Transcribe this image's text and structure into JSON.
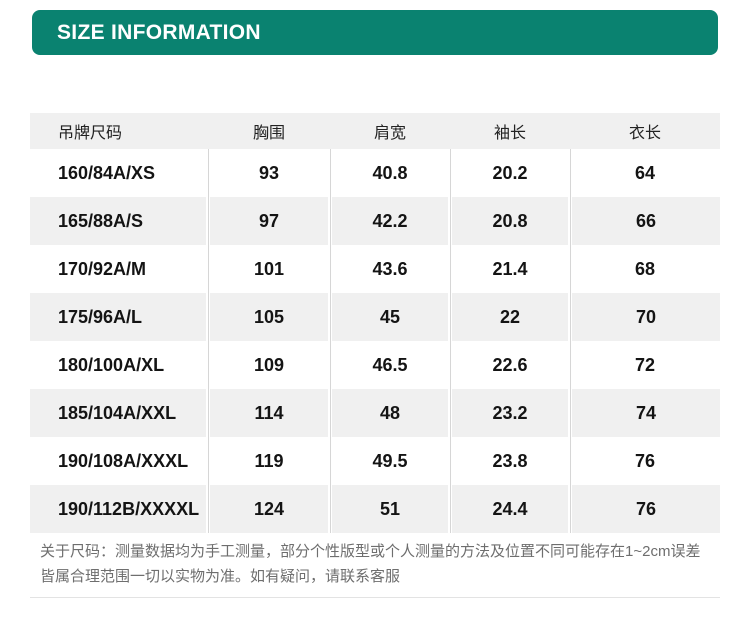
{
  "banner": {
    "title": "SIZE INFORMATION",
    "bg_color": "#0a8270",
    "text_color": "#ffffff"
  },
  "table": {
    "header": [
      "吊牌尺码",
      "胸围",
      "肩宽",
      "袖长",
      "衣长"
    ],
    "rows": [
      [
        "160/84A/XS",
        "93",
        "40.8",
        "20.2",
        "64"
      ],
      [
        "165/88A/S",
        "97",
        "42.2",
        "20.8",
        "66"
      ],
      [
        "170/92A/M",
        "101",
        "43.6",
        "21.4",
        "68"
      ],
      [
        "175/96A/L",
        "105",
        "45",
        "22",
        "70"
      ],
      [
        "180/100A/XL",
        "109",
        "46.5",
        "22.6",
        "72"
      ],
      [
        "185/104A/XXL",
        "114",
        "48",
        "23.2",
        "74"
      ],
      [
        "190/108A/XXXL",
        "119",
        "49.5",
        "23.8",
        "76"
      ],
      [
        "190/112B/XXXXL",
        "124",
        "51",
        "24.4",
        "76"
      ]
    ],
    "stripe_color": "#f0f0f0",
    "divider_color": "#d6d6d6"
  },
  "footnote": {
    "line1": "关于尺码：测量数据均为手工测量，部分个性版型或个人测量的方法及位置不同可能存在1~2cm误差",
    "line2": "皆属合理范围一切以实物为准。如有疑问，请联系客服"
  }
}
